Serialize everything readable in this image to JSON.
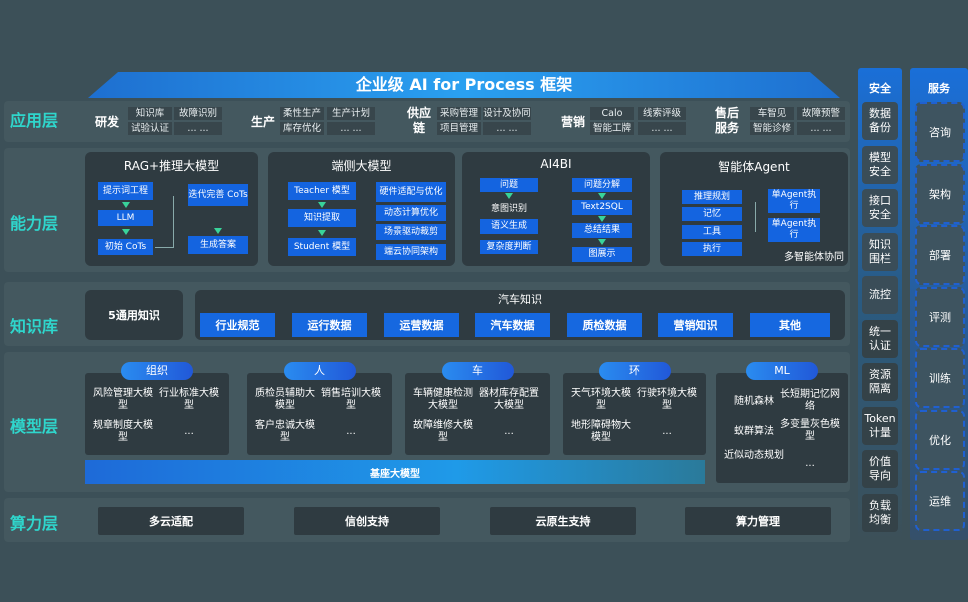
{
  "title": "企业级 AI for Process 框架",
  "layers": {
    "app": "应用层",
    "capability": "能力层",
    "knowledge": "知识库",
    "model": "模型层",
    "compute": "算力层"
  },
  "app_groups": [
    {
      "name": "研发",
      "items": [
        "知识库",
        "故障识别",
        "试验认证",
        "... ..."
      ]
    },
    {
      "name": "生产",
      "items": [
        "柔性生产",
        "生产计划",
        "库存优化",
        "... ..."
      ]
    },
    {
      "name": "供应链",
      "items": [
        "采购管理",
        "设计及协同",
        "项目管理",
        "... ..."
      ]
    },
    {
      "name": "营销",
      "items": [
        "Calo",
        "线索评级",
        "智能工牌",
        "... ..."
      ]
    },
    {
      "name": "售后服务",
      "items": [
        "车智见",
        "故障预警",
        "智能诊修",
        "... ..."
      ]
    }
  ],
  "capability": {
    "rag": {
      "title": "RAG+推理大模型",
      "items": [
        "提示词工程",
        "LLM",
        "初始 CoTs",
        "迭代完善 CoTs",
        "生成答案"
      ]
    },
    "edge": {
      "title": "端侧大模型",
      "items": [
        "Teacher 模型",
        "知识提取",
        "Student 模型",
        "硬件适配与优化",
        "动态计算优化",
        "场景驱动裁剪",
        "端云协同架构"
      ]
    },
    "ai4bi": {
      "title": "AI4BI",
      "items": [
        "问题",
        "意图识别",
        "语义生成",
        "复杂度判断",
        "问题分解",
        "Text2SQL",
        "总结结果",
        "图展示"
      ]
    },
    "agent": {
      "title": "智能体Agent",
      "items": [
        "推理规划",
        "记忆",
        "工具",
        "执行",
        "单Agent执行",
        "单Agent执行"
      ],
      "footer": "多智能体协同"
    }
  },
  "knowledge": {
    "general": "5通用知识",
    "auto_title": "汽车知识",
    "items": [
      "行业规范",
      "运行数据",
      "运营数据",
      "汽车数据",
      "质检数据",
      "营销知识",
      "其他"
    ]
  },
  "model": {
    "groups": [
      {
        "name": "组织",
        "items": [
          "风险管理大模型",
          "行业标准大模型",
          "规章制度大模型",
          "..."
        ]
      },
      {
        "name": "人",
        "items": [
          "质检员辅助大模型",
          "销售培训大模型",
          "客户忠诚大模型",
          "..."
        ]
      },
      {
        "name": "车",
        "items": [
          "车辆健康检测大模型",
          "器材库存配置大模型",
          "故障维修大模型",
          "..."
        ]
      },
      {
        "name": "环",
        "items": [
          "天气环境大模型",
          "行驶环境大模型",
          "地形障碍物大模型",
          "..."
        ]
      },
      {
        "name": "ML",
        "items": [
          "随机森林",
          "长短期记忆网络",
          "蚁群算法",
          "多变量灰色模型",
          "近似动态规划",
          "..."
        ]
      }
    ],
    "base": "基座大模型"
  },
  "compute": [
    "多云适配",
    "信创支持",
    "云原生支持",
    "算力管理"
  ],
  "security": {
    "title": "安全",
    "items": [
      "数据备份",
      "模型安全",
      "接口安全",
      "知识围栏",
      "流控",
      "统一认证",
      "资源隔离",
      "Token计量",
      "价值导向",
      "负载均衡"
    ]
  },
  "service": {
    "title": "服务",
    "items": [
      "咨询",
      "架构",
      "部署",
      "评测",
      "训练",
      "优化",
      "运维"
    ]
  },
  "colors": {
    "background": "#3c5058",
    "accent_blue": "#1464e0",
    "layer_label": "#2fd6cc",
    "arrow": "#39d39a"
  }
}
